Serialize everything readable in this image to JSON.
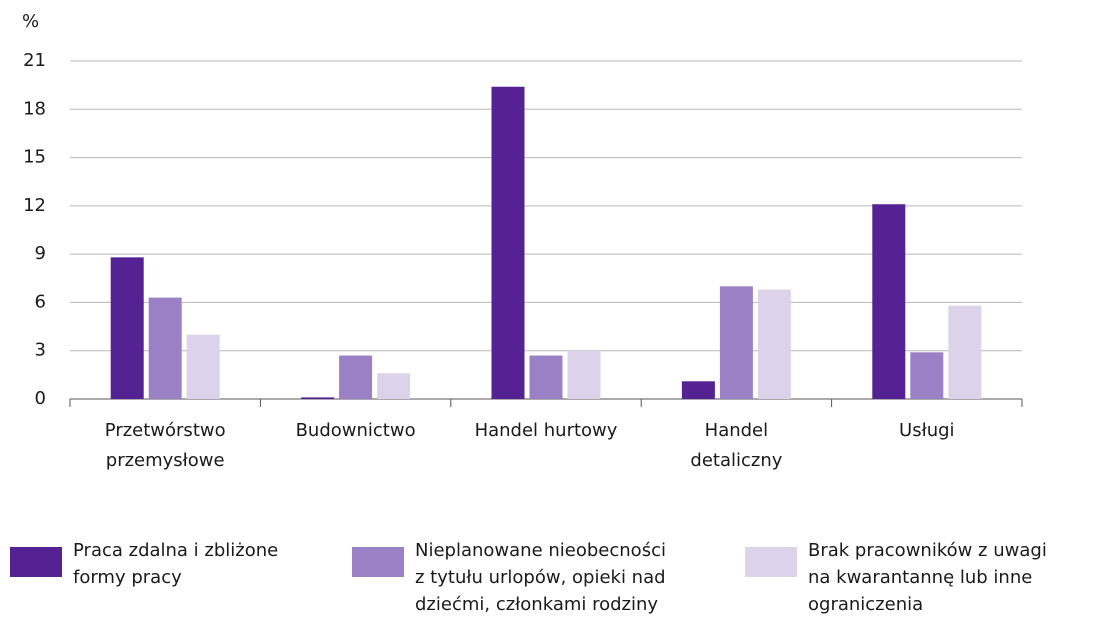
{
  "chart_data": {
    "type": "bar",
    "ylabel": "%",
    "categories": [
      [
        "Przetwórstwo",
        "przemysłowe"
      ],
      [
        "Budownictwo"
      ],
      [
        "Handel hurtowy"
      ],
      [
        "Handel",
        "detaliczny"
      ],
      [
        "Usługi"
      ]
    ],
    "series": [
      {
        "name": [
          "Praca zdalna i zbliżone",
          "formy pracy"
        ],
        "color": "#542293",
        "values": [
          8.8,
          0.1,
          19.4,
          1.1,
          12.1
        ]
      },
      {
        "name": [
          "Nieplanowane nieobecności",
          "z tytułu urlopów, opieki nad",
          "dziećmi, członkami rodziny"
        ],
        "color": "#9a80c4",
        "values": [
          6.3,
          2.7,
          2.7,
          7.0,
          2.9
        ]
      },
      {
        "name": [
          "Brak pracowników z uwagi",
          "na kwarantannę lub inne",
          "ograniczenia"
        ],
        "color": "#dcd3ea",
        "values": [
          4.0,
          1.6,
          3.0,
          6.8,
          5.8
        ]
      }
    ],
    "ylim": [
      0,
      21
    ],
    "yticks": [
      0,
      3,
      6,
      9,
      12,
      15,
      18,
      21
    ],
    "grid": true
  }
}
